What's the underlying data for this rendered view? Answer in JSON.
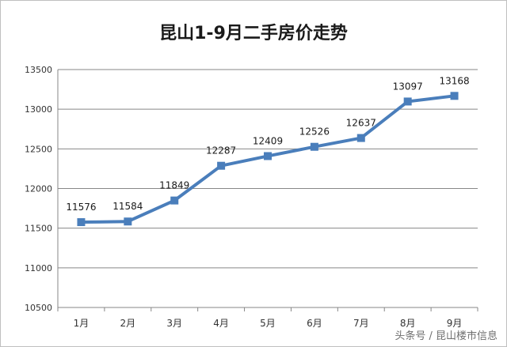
{
  "chart_data": {
    "type": "line",
    "title": "昆山1-9月二手房价走势",
    "categories": [
      "1月",
      "2月",
      "3月",
      "4月",
      "5月",
      "6月",
      "7月",
      "8月",
      "9月"
    ],
    "series": [
      {
        "values": [
          11576,
          11584,
          11849,
          12287,
          12409,
          12526,
          12637,
          13097,
          13168
        ]
      }
    ],
    "ylim": [
      10500,
      13500
    ],
    "yticks": [
      10500,
      11000,
      11500,
      12000,
      12500,
      13000,
      13500
    ],
    "grid": true,
    "line_color": "#4a7ebb",
    "grid_color": "#878787"
  },
  "watermark": "头条号 / 昆山楼市信息"
}
